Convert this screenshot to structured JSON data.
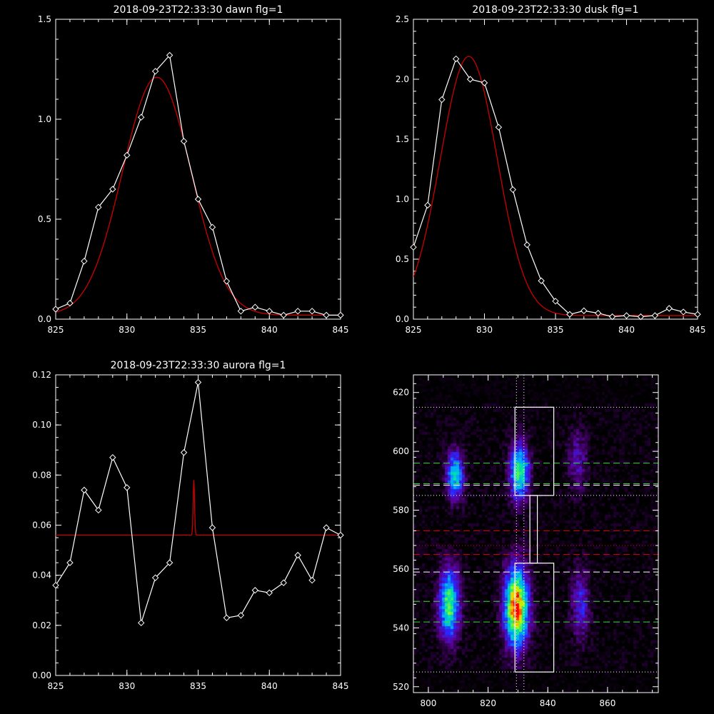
{
  "chart_data": [
    {
      "type": "line",
      "title": "2018-09-23T22:33:30 dawn flg=1",
      "xlim": [
        825,
        845
      ],
      "ylim": [
        0,
        1.5
      ],
      "xticks": [
        825,
        830,
        835,
        840,
        845
      ],
      "xtick_labels": [
        "825",
        "830",
        "835",
        "840",
        "845"
      ],
      "yticks": [
        0,
        0.5,
        1.0,
        1.5
      ],
      "ytick_labels": [
        "0.0",
        "0.5",
        "1.0",
        "1.5"
      ],
      "series": [
        {
          "color": "#ffffff",
          "marker": "diamond",
          "x": [
            825,
            826,
            827,
            828,
            829,
            830,
            831,
            832,
            833,
            834,
            835,
            836,
            837,
            838,
            839,
            840,
            841,
            842,
            843,
            844,
            845
          ],
          "y": [
            0.05,
            0.08,
            0.29,
            0.56,
            0.65,
            0.82,
            1.01,
            1.24,
            1.32,
            0.89,
            0.6,
            0.46,
            0.19,
            0.04,
            0.06,
            0.04,
            0.02,
            0.04,
            0.04,
            0.02,
            0.02
          ]
        },
        {
          "color": "#cc0000",
          "kind": "gaussian_fit",
          "amplitude": 1.19,
          "center": 832.1,
          "sigma": 2.4,
          "offset": 0.02
        }
      ]
    },
    {
      "type": "line",
      "title": "2018-09-23T22:33:30 dusk flg=1",
      "xlim": [
        825,
        845
      ],
      "ylim": [
        0,
        2.5
      ],
      "xticks": [
        825,
        830,
        835,
        840,
        845
      ],
      "xtick_labels": [
        "825",
        "830",
        "835",
        "840",
        "845"
      ],
      "yticks": [
        0,
        0.5,
        1.0,
        1.5,
        2.0,
        2.5
      ],
      "ytick_labels": [
        "0.0",
        "0.5",
        "1.0",
        "1.5",
        "2.0",
        "2.5"
      ],
      "series": [
        {
          "color": "#ffffff",
          "marker": "diamond",
          "x": [
            825,
            826,
            827,
            828,
            829,
            830,
            831,
            832,
            833,
            834,
            835,
            836,
            837,
            838,
            839,
            840,
            841,
            842,
            843,
            844,
            845
          ],
          "y": [
            0.6,
            0.95,
            1.83,
            2.17,
            2.0,
            1.97,
            1.6,
            1.08,
            0.62,
            0.32,
            0.15,
            0.04,
            0.07,
            0.05,
            0.02,
            0.03,
            0.02,
            0.03,
            0.09,
            0.06,
            0.04
          ]
        },
        {
          "color": "#cc0000",
          "kind": "gaussian_fit",
          "amplitude": 2.16,
          "center": 828.9,
          "sigma": 2.0,
          "offset": 0.03
        }
      ]
    },
    {
      "type": "line",
      "title": "2018-09-23T22:33:30 aurora flg=1",
      "xlim": [
        825,
        845
      ],
      "ylim": [
        0,
        0.12
      ],
      "xticks": [
        825,
        830,
        835,
        840,
        845
      ],
      "xtick_labels": [
        "825",
        "830",
        "835",
        "840",
        "845"
      ],
      "yticks": [
        0,
        0.02,
        0.04,
        0.06,
        0.08,
        0.1,
        0.12
      ],
      "ytick_labels": [
        "0.00",
        "0.02",
        "0.04",
        "0.06",
        "0.08",
        "0.10",
        "0.12"
      ],
      "series": [
        {
          "color": "#ffffff",
          "marker": "diamond",
          "x": [
            825,
            826,
            827,
            828,
            829,
            830,
            831,
            832,
            833,
            834,
            835,
            836,
            837,
            838,
            839,
            840,
            841,
            842,
            843,
            844,
            845
          ],
          "y": [
            0.036,
            0.045,
            0.074,
            0.066,
            0.087,
            0.075,
            0.021,
            0.039,
            0.045,
            0.089,
            0.117,
            0.059,
            0.023,
            0.024,
            0.034,
            0.033,
            0.037,
            0.048,
            0.038,
            0.059,
            0.056
          ]
        },
        {
          "color": "#cc0000",
          "kind": "gaussian_fit",
          "amplitude": 0.022,
          "center": 834.7,
          "sigma": 0.05,
          "offset": 0.056
        }
      ]
    },
    {
      "type": "heatmap",
      "title": "",
      "xlim": [
        795,
        877
      ],
      "ylim": [
        518,
        626
      ],
      "xticks": [
        800,
        820,
        840,
        860
      ],
      "xtick_labels": [
        "800",
        "820",
        "840",
        "860"
      ],
      "yticks": [
        520,
        540,
        560,
        580,
        600,
        620
      ],
      "ytick_labels": [
        "520",
        "540",
        "560",
        "580",
        "600",
        "620"
      ],
      "blobs": [
        {
          "x": 809,
          "y": 592,
          "sx": 2.2,
          "sy": 6,
          "amp": 0.62
        },
        {
          "x": 830.5,
          "y": 593,
          "sx": 2.4,
          "sy": 7,
          "amp": 0.72
        },
        {
          "x": 807,
          "y": 548,
          "sx": 2.6,
          "sy": 9,
          "amp": 0.72
        },
        {
          "x": 829.5,
          "y": 547,
          "sx": 3.0,
          "sy": 10,
          "amp": 1.0
        },
        {
          "x": 851,
          "y": 548,
          "sx": 2.3,
          "sy": 9,
          "amp": 0.35
        },
        {
          "x": 850,
          "y": 597,
          "sx": 2.3,
          "sy": 8,
          "amp": 0.28
        }
      ],
      "boxes": [
        {
          "x0": 829,
          "x1": 842,
          "y0": 585,
          "y1": 615
        },
        {
          "x0": 829,
          "x1": 842,
          "y0": 525,
          "y1": 562
        },
        {
          "x0": 834,
          "x1": 836.5,
          "y0": 562,
          "y1": 585
        }
      ],
      "h_lines": [
        {
          "y": 615,
          "color": "#ffffff",
          "style": "dotted"
        },
        {
          "y": 585,
          "color": "#ffffff",
          "style": "dotted"
        },
        {
          "y": 525,
          "color": "#ffffff",
          "style": "dotted"
        },
        {
          "y": 596,
          "color": "#33dd33",
          "style": "dashed"
        },
        {
          "y": 589,
          "color": "#33dd33",
          "style": "dashed"
        },
        {
          "y": 588.5,
          "color": "#ffffff",
          "style": "dashed"
        },
        {
          "y": 573,
          "color": "#dd0000",
          "style": "dashed"
        },
        {
          "y": 568,
          "color": "#dd0000",
          "style": "dotted"
        },
        {
          "y": 565,
          "color": "#dd0000",
          "style": "dashed"
        },
        {
          "y": 559,
          "color": "#ffffff",
          "style": "dashed"
        },
        {
          "y": 549,
          "color": "#33dd33",
          "style": "dashed"
        },
        {
          "y": 542,
          "color": "#33dd33",
          "style": "dashed"
        }
      ],
      "v_lines": [
        {
          "x": 829.5,
          "color": "#ffffff",
          "style": "dotted"
        },
        {
          "x": 832,
          "color": "#ffffff",
          "style": "dotted"
        }
      ]
    }
  ]
}
